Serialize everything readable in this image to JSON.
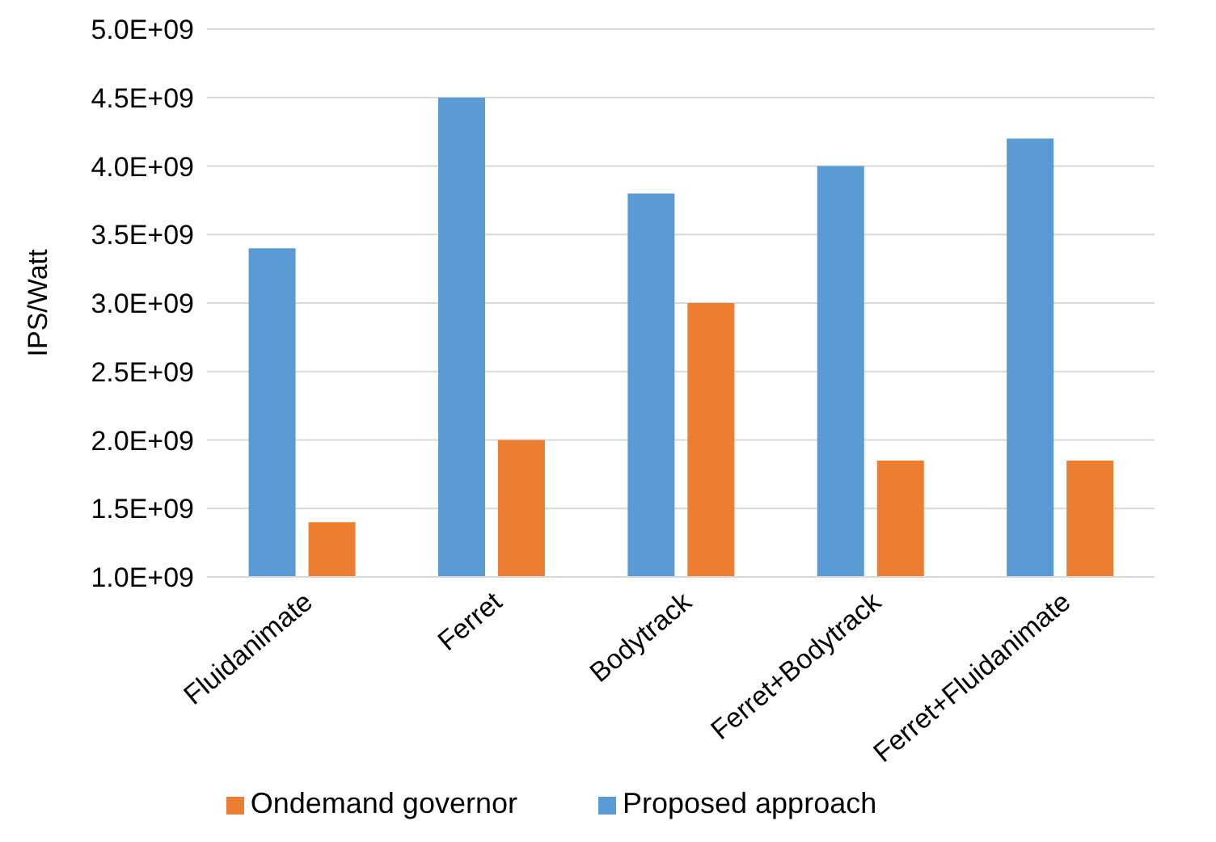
{
  "chart_data": {
    "type": "bar",
    "ylabel": "IPS/Watt",
    "categories": [
      "Fluidanimate",
      "Ferret",
      "Bodytrack",
      "Ferret+Bodytrack",
      "Ferret+Fluidanimate"
    ],
    "series": [
      {
        "name": "Proposed approach",
        "color": "#5b9bd5",
        "values": [
          3400000000.0,
          4500000000.0,
          3800000000.0,
          4000000000.0,
          4200000000.0
        ]
      },
      {
        "name": "Ondemand governor",
        "color": "#ed7d31",
        "values": [
          1400000000.0,
          2000000000.0,
          3000000000.0,
          1850000000.0,
          1850000000.0
        ]
      }
    ],
    "ylim": [
      1000000000.0,
      5000000000.0
    ],
    "yticks": [
      {
        "value": 1000000000.0,
        "label": "1.0E+09"
      },
      {
        "value": 1500000000.0,
        "label": "1.5E+09"
      },
      {
        "value": 2000000000.0,
        "label": "2.0E+09"
      },
      {
        "value": 2500000000.0,
        "label": "2.5E+09"
      },
      {
        "value": 3000000000.0,
        "label": "3.0E+09"
      },
      {
        "value": 3500000000.0,
        "label": "3.5E+09"
      },
      {
        "value": 4000000000.0,
        "label": "4.0E+09"
      },
      {
        "value": 4500000000.0,
        "label": "4.5E+09"
      },
      {
        "value": 5000000000.0,
        "label": "5.0E+09"
      }
    ],
    "grid": "y",
    "legend": "bottom"
  }
}
